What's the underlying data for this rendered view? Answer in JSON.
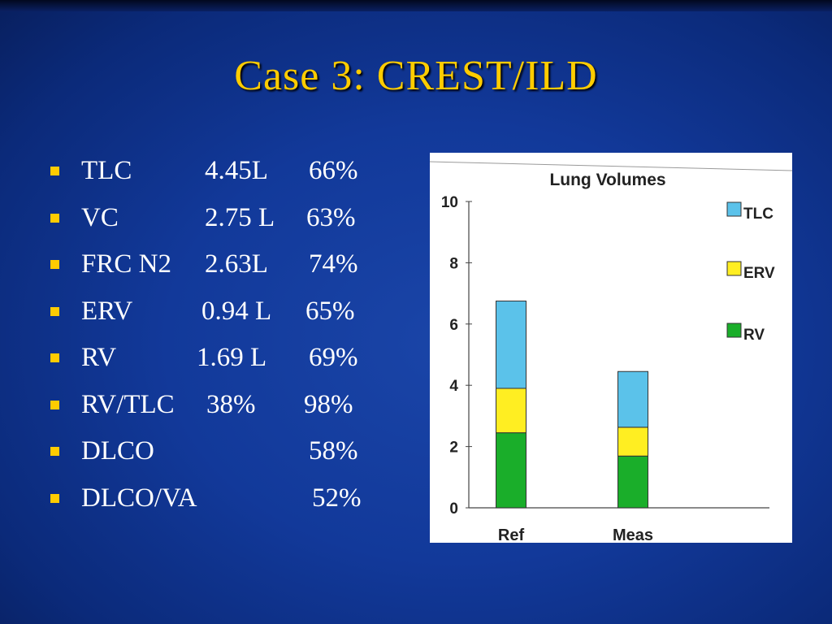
{
  "slide": {
    "title": "Case 3: CREST/ILD",
    "bullets": [
      {
        "label": "TLC",
        "value": "4.45L",
        "percent": "66%"
      },
      {
        "label": "VC",
        "value": "2.75 L",
        "percent": "63%"
      },
      {
        "label": "FRC N2",
        "value": "2.63L",
        "percent": "74%"
      },
      {
        "label": "ERV",
        "value": "0.94 L",
        "percent": "65%"
      },
      {
        "label": "RV",
        "value": "1.69 L",
        "percent": "69%"
      },
      {
        "label": "RV/TLC",
        "value": "38%",
        "percent": "98%"
      },
      {
        "label": "DLCO",
        "value": "",
        "percent": "58%"
      },
      {
        "label": "DLCO/VA",
        "value": "",
        "percent": "52%"
      }
    ]
  },
  "colors": {
    "title": "#ffcc00",
    "bullet": "#ffcc00",
    "text": "#ffffff",
    "tlc": "#5bc2ea",
    "erv": "#ffee22",
    "rv": "#1aae2a"
  },
  "chart_data": {
    "type": "bar",
    "stacked": true,
    "title": "Lung Volumes",
    "categories": [
      "Ref",
      "Meas"
    ],
    "series": [
      {
        "name": "RV",
        "values": [
          2.45,
          1.69
        ]
      },
      {
        "name": "ERV",
        "values": [
          1.45,
          0.94
        ]
      },
      {
        "name": "TLC",
        "values": [
          2.85,
          1.82
        ]
      }
    ],
    "ylim": [
      0,
      10
    ],
    "yticks": [
      0,
      2,
      4,
      6,
      8,
      10
    ],
    "grid": false,
    "legend": "right",
    "legend_order": [
      "TLC",
      "ERV",
      "RV"
    ]
  }
}
